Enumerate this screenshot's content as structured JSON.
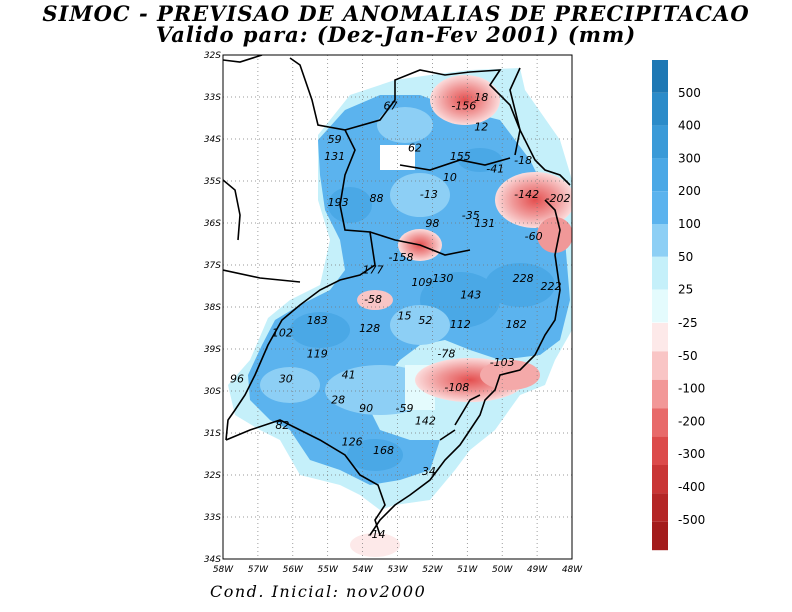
{
  "title": "SIMOC - PREVISAO DE ANOMALIAS DE PRECIPITACAO",
  "subtitle": "Valido para: (Dez-Jan-Fev 2001) (mm)",
  "footer": "Cond. Inicial: nov2000",
  "map": {
    "lat_labels": [
      "32S",
      "33S",
      "34S",
      "35S",
      "36S",
      "37S",
      "38S",
      "39S",
      "30S",
      "31S",
      "32S",
      "33S",
      "34S"
    ],
    "lon_labels": [
      "58W",
      "57W",
      "56W",
      "55W",
      "54W",
      "53W",
      "52W",
      "51W",
      "50W",
      "49W",
      "48W"
    ],
    "value_labels": [
      {
        "text": "-156",
        "lon": -51.1,
        "lat": -23.3
      },
      {
        "text": "18",
        "lon": -50.6,
        "lat": -23.1
      },
      {
        "text": "67",
        "lon": -53.2,
        "lat": -23.3
      },
      {
        "text": "12",
        "lon": -50.6,
        "lat": -23.8
      },
      {
        "text": "59",
        "lon": -54.8,
        "lat": -24.1
      },
      {
        "text": "62",
        "lon": -52.5,
        "lat": -24.3
      },
      {
        "text": "155",
        "lon": -51.2,
        "lat": -24.5
      },
      {
        "text": "-18",
        "lon": -49.4,
        "lat": -24.6
      },
      {
        "text": "131",
        "lon": -54.8,
        "lat": -24.5
      },
      {
        "text": "-41",
        "lon": -50.2,
        "lat": -24.8
      },
      {
        "text": "10",
        "lon": -51.5,
        "lat": -25.0
      },
      {
        "text": "-13",
        "lon": -52.1,
        "lat": -25.4
      },
      {
        "text": "-142",
        "lon": -49.3,
        "lat": -25.4
      },
      {
        "text": "-202",
        "lon": -48.4,
        "lat": -25.5
      },
      {
        "text": "193",
        "lon": -54.7,
        "lat": -25.6
      },
      {
        "text": "88",
        "lon": -53.6,
        "lat": -25.5
      },
      {
        "text": "-35",
        "lon": -50.9,
        "lat": -25.9
      },
      {
        "text": "98",
        "lon": -52.0,
        "lat": -26.1
      },
      {
        "text": "131",
        "lon": -50.5,
        "lat": -26.1
      },
      {
        "text": "-60",
        "lon": -49.1,
        "lat": -26.4
      },
      {
        "text": "-158",
        "lon": -52.9,
        "lat": -26.9
      },
      {
        "text": "177",
        "lon": -53.7,
        "lat": -27.2
      },
      {
        "text": "109",
        "lon": -52.3,
        "lat": -27.5
      },
      {
        "text": "130",
        "lon": -51.7,
        "lat": -27.4
      },
      {
        "text": "228",
        "lon": -49.4,
        "lat": -27.4
      },
      {
        "text": "222",
        "lon": -48.6,
        "lat": -27.6
      },
      {
        "text": "143",
        "lon": -50.9,
        "lat": -27.8
      },
      {
        "text": "-58",
        "lon": -53.7,
        "lat": -27.9
      },
      {
        "text": "183",
        "lon": -55.3,
        "lat": -28.4
      },
      {
        "text": "15",
        "lon": -52.8,
        "lat": -28.3
      },
      {
        "text": "52",
        "lon": -52.2,
        "lat": -28.4
      },
      {
        "text": "112",
        "lon": -51.2,
        "lat": -28.5
      },
      {
        "text": "182",
        "lon": -49.6,
        "lat": -28.5
      },
      {
        "text": "102",
        "lon": -56.3,
        "lat": -28.7
      },
      {
        "text": "128",
        "lon": -53.8,
        "lat": -28.6
      },
      {
        "text": "119",
        "lon": -55.3,
        "lat": -29.2
      },
      {
        "text": "-78",
        "lon": -51.6,
        "lat": -29.2
      },
      {
        "text": "-103",
        "lon": -50.0,
        "lat": -29.4
      },
      {
        "text": "96",
        "lon": -57.6,
        "lat": -29.8
      },
      {
        "text": "30",
        "lon": -56.2,
        "lat": -29.8
      },
      {
        "text": "41",
        "lon": -54.4,
        "lat": -29.7
      },
      {
        "text": "-108",
        "lon": -51.3,
        "lat": -30.0
      },
      {
        "text": "28",
        "lon": -54.7,
        "lat": -30.3
      },
      {
        "text": "90",
        "lon": -53.9,
        "lat": -30.5
      },
      {
        "text": "-59",
        "lon": -52.8,
        "lat": -30.5
      },
      {
        "text": "142",
        "lon": -52.2,
        "lat": -30.8
      },
      {
        "text": "82",
        "lon": -56.3,
        "lat": -30.9
      },
      {
        "text": "126",
        "lon": -54.3,
        "lat": -31.3
      },
      {
        "text": "168",
        "lon": -53.4,
        "lat": -31.5
      },
      {
        "text": "34",
        "lon": -52.1,
        "lat": -32.0
      },
      {
        "text": "-14",
        "lon": -53.6,
        "lat": -33.5
      }
    ]
  },
  "colorbar": {
    "positive": {
      "labels": [
        "500",
        "400",
        "300",
        "200",
        "100",
        "50",
        "25"
      ],
      "colors": [
        "#1e78b4",
        "#2b8bc9",
        "#3a9ad8",
        "#4aa8e6",
        "#5bb3ee",
        "#8dcff5",
        "#c5f0fa",
        "#e4fbfd"
      ]
    },
    "negative": {
      "labels": [
        "-25",
        "-50",
        "-100",
        "-200",
        "-300",
        "-400",
        "-500"
      ],
      "colors": [
        "#fde9e9",
        "#f9c5c5",
        "#f29898",
        "#e86a6a",
        "#dc4a4a",
        "#c93535",
        "#b42626",
        "#a31c1c"
      ]
    }
  }
}
